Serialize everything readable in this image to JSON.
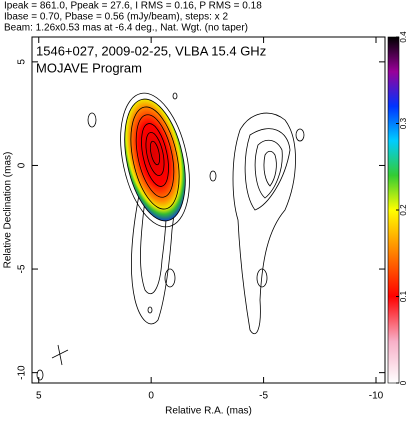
{
  "chart_data": {
    "type": "image",
    "header": [
      "Ipeak = 861.0, Ppeak = 27.6, I RMS = 0.16, P RMS = 0.18",
      "Ibase = 0.70, Pbase = 0.56 (mJy/beam), steps: x 2",
      "Beam: 1.26x0.53 mas at -6.4 deg., Nat. Wgt. (no taper)"
    ],
    "title": [
      "1546+027, 2009-02-25, VLBA 15.4 GHz",
      "MOJAVE Program"
    ],
    "xlabel": "Relative R.A. (mas)",
    "ylabel": "Relative Declination (mas)",
    "xlim": [
      5.3,
      -10.4
    ],
    "ylim": [
      -10.5,
      6.2
    ],
    "xticks": [
      5,
      0,
      -5,
      -10
    ],
    "yticks": [
      -10,
      -5,
      0,
      5
    ],
    "colorbar": {
      "lim": [
        0,
        0.4
      ],
      "ticks": [
        0,
        0.1,
        0.2,
        0.3,
        0.4
      ]
    }
  }
}
